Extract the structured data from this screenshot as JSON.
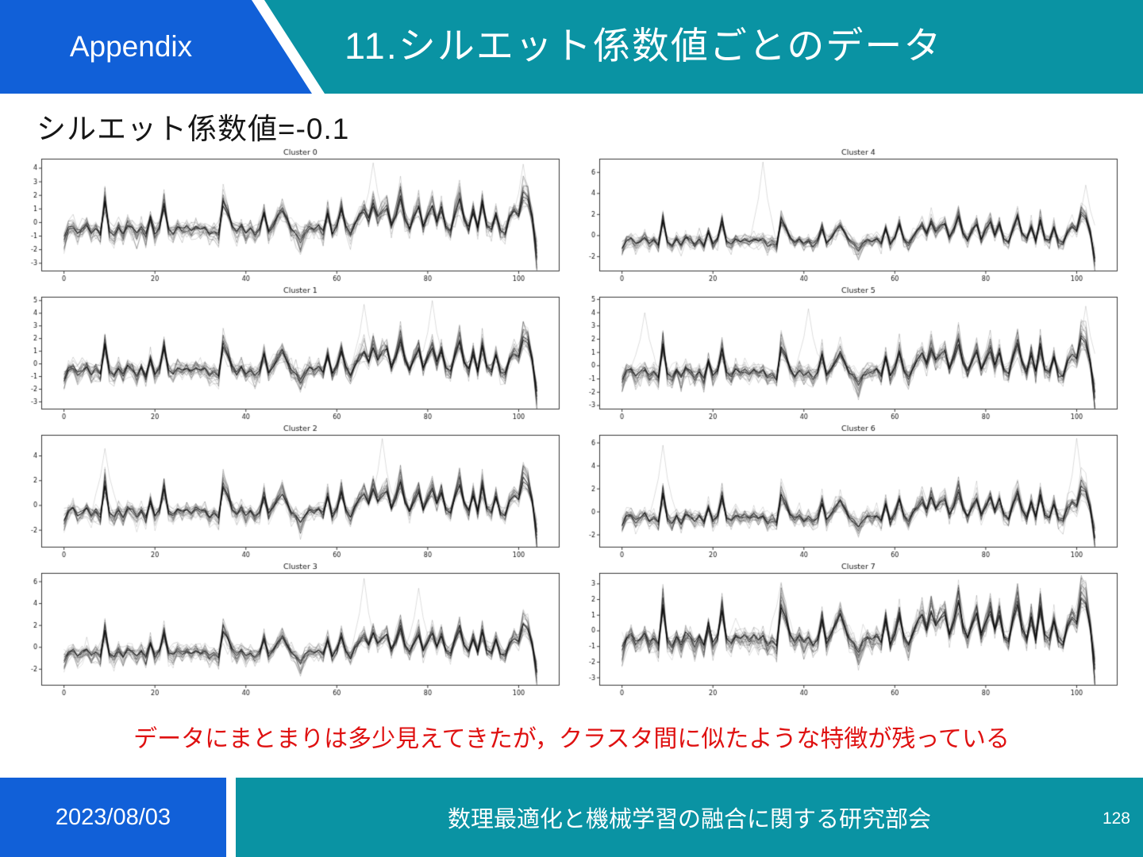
{
  "header": {
    "tag_label": "Appendix",
    "title": "11.シルエット係数値ごとのデータ"
  },
  "subtitle": "シルエット係数値=-0.1",
  "note": "データにまとまりは多少見えてきたが，クラスタ間に似たような特徴が残っている",
  "footer": {
    "date": "2023/08/03",
    "organization": "数理最適化と機械学習の融合に関する研究部会",
    "page": "128"
  },
  "colors": {
    "header_blue": "#1160d8",
    "header_teal": "#0a93a3",
    "note_red": "#df1111",
    "chart_line": "#000000"
  },
  "chart_data": {
    "type": "line",
    "description": "8 subplots, each with ~26 overlapping semi-transparent gray/black time series sharing a common spiky pattern",
    "x_ticks": [
      0,
      20,
      40,
      60,
      80,
      100
    ],
    "x_range": [
      -5,
      109
    ],
    "n_points": 105,
    "series_per_cluster": 26,
    "base_series": [
      -1.4,
      -0.5,
      -0.3,
      -0.9,
      -0.6,
      -0.2,
      -0.9,
      -0.5,
      -1.0,
      1.8,
      -0.7,
      -1.1,
      -0.4,
      -1.0,
      -0.2,
      -0.5,
      -1.0,
      -0.4,
      -1.1,
      0.4,
      -0.9,
      -0.4,
      1.5,
      -0.6,
      -0.9,
      -0.3,
      -0.6,
      -0.4,
      -0.7,
      -0.3,
      -0.6,
      -0.4,
      -1.0,
      -0.7,
      -1.1,
      1.7,
      0.9,
      -0.3,
      -0.8,
      -0.3,
      -0.9,
      -0.5,
      -1.0,
      -0.6,
      0.9,
      -0.8,
      -0.2,
      0.5,
      1.1,
      0.3,
      -0.6,
      -0.9,
      -1.6,
      -0.8,
      -0.4,
      -0.6,
      -0.3,
      -0.8,
      0.8,
      -0.9,
      -0.2,
      1.2,
      -0.4,
      -1.0,
      -0.1,
      0.6,
      1.1,
      0.2,
      1.5,
      0.4,
      1.0,
      1.3,
      -0.2,
      0.7,
      2.1,
      0.3,
      -0.5,
      0.5,
      1.3,
      -0.3,
      0.6,
      1.5,
      0.1,
      1.2,
      -0.4,
      -0.7,
      0.8,
      2.0,
      0.2,
      -0.5,
      1.0,
      -0.5,
      1.7,
      -0.3,
      -0.6,
      0.8,
      -0.7,
      -0.9,
      0.4,
      1.0,
      0.6,
      2.4,
      2.0,
      0.3,
      -2.7
    ],
    "clusters": [
      {
        "title": "Cluster 0",
        "y_ticks": [
          -3,
          -2,
          -1,
          0,
          1,
          2,
          3,
          4
        ],
        "ylim": [
          -3.6,
          4.7
        ],
        "seed": 11,
        "outlier_spikes": [
          {
            "x": 68,
            "amp": 4.4
          },
          {
            "x": 101,
            "amp": 4.3
          }
        ]
      },
      {
        "title": "Cluster 1",
        "y_ticks": [
          -3,
          -2,
          -1,
          0,
          1,
          2,
          3,
          4,
          5
        ],
        "ylim": [
          -3.6,
          5.3
        ],
        "seed": 23,
        "outlier_spikes": [
          {
            "x": 66,
            "amp": 4.7
          },
          {
            "x": 81,
            "amp": 5.0
          }
        ]
      },
      {
        "title": "Cluster 2",
        "y_ticks": [
          -2,
          0,
          2,
          4
        ],
        "ylim": [
          -3.4,
          5.7
        ],
        "seed": 37,
        "outlier_spikes": [
          {
            "x": 9,
            "amp": 4.6
          },
          {
            "x": 70,
            "amp": 5.4
          }
        ]
      },
      {
        "title": "Cluster 3",
        "y_ticks": [
          -2,
          0,
          2,
          4,
          6
        ],
        "ylim": [
          -3.5,
          6.8
        ],
        "seed": 41,
        "outlier_spikes": [
          {
            "x": 66,
            "amp": 6.3
          },
          {
            "x": 78,
            "amp": 5.4
          }
        ]
      },
      {
        "title": "Cluster 4",
        "y_ticks": [
          -2,
          0,
          2,
          4,
          6
        ],
        "ylim": [
          -3.4,
          7.3
        ],
        "seed": 53,
        "outlier_spikes": [
          {
            "x": 31,
            "amp": 7.0
          },
          {
            "x": 102,
            "amp": 4.8
          }
        ]
      },
      {
        "title": "Cluster 5",
        "y_ticks": [
          -3,
          -2,
          -1,
          0,
          1,
          2,
          3,
          4,
          5
        ],
        "ylim": [
          -3.3,
          5.2
        ],
        "seed": 67,
        "outlier_spikes": [
          {
            "x": 5,
            "amp": 4.0
          },
          {
            "x": 41,
            "amp": 4.3
          },
          {
            "x": 102,
            "amp": 4.5
          }
        ]
      },
      {
        "title": "Cluster 6",
        "y_ticks": [
          -2,
          0,
          2,
          4,
          6
        ],
        "ylim": [
          -3.1,
          6.7
        ],
        "seed": 71,
        "outlier_spikes": [
          {
            "x": 9,
            "amp": 5.8
          },
          {
            "x": 100,
            "amp": 6.4
          }
        ]
      },
      {
        "title": "Cluster 7",
        "y_ticks": [
          -3,
          -2,
          -1,
          0,
          1,
          2,
          3
        ],
        "ylim": [
          -3.5,
          3.7
        ],
        "seed": 83,
        "outlier_spikes": [
          {
            "x": 35,
            "amp": 3.1
          },
          {
            "x": 101,
            "amp": 3.4
          }
        ]
      }
    ]
  }
}
